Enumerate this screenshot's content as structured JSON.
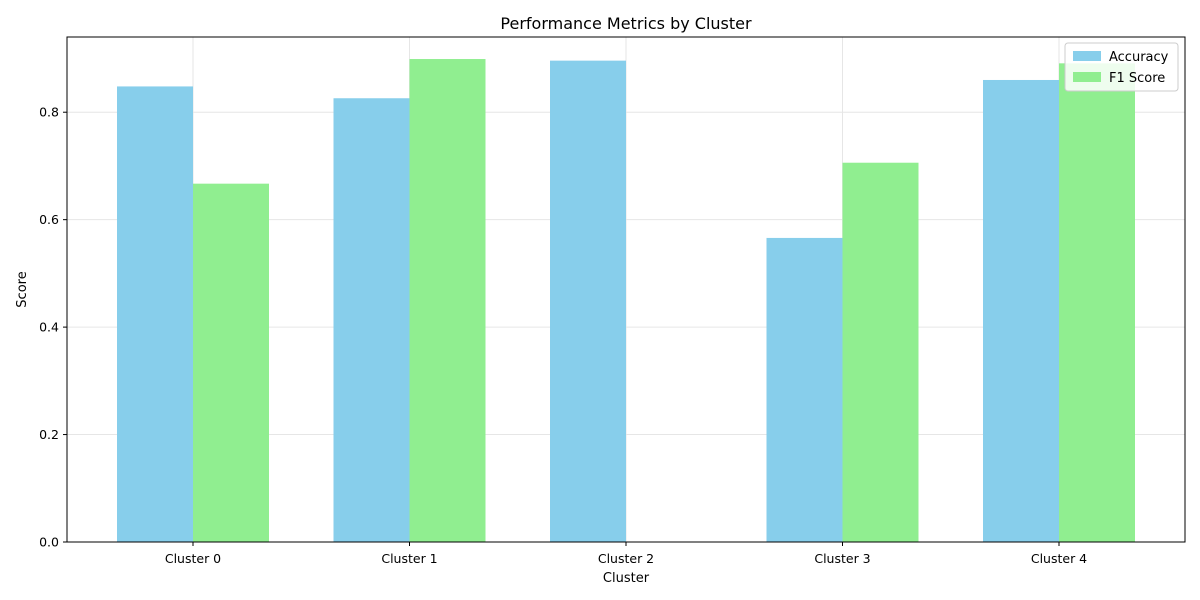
{
  "chart_data": {
    "type": "bar",
    "title": "Performance Metrics by Cluster",
    "xlabel": "Cluster",
    "ylabel": "Score",
    "categories": [
      "Cluster 0",
      "Cluster 1",
      "Cluster 2",
      "Cluster 3",
      "Cluster 4"
    ],
    "series": [
      {
        "name": "Accuracy",
        "color": "#87CEEB",
        "values": [
          0.848,
          0.826,
          0.896,
          0.566,
          0.86
        ]
      },
      {
        "name": "F1 Score",
        "color": "#90EE90",
        "values": [
          0.667,
          0.899,
          0.0,
          0.706,
          0.891
        ]
      }
    ],
    "ylim": [
      0,
      0.94
    ],
    "yticks": [
      0.0,
      0.2,
      0.4,
      0.6,
      0.8
    ],
    "ytick_labels": [
      "0.0",
      "0.2",
      "0.4",
      "0.6",
      "0.8"
    ],
    "grid": true,
    "legend_position": "top-right"
  }
}
